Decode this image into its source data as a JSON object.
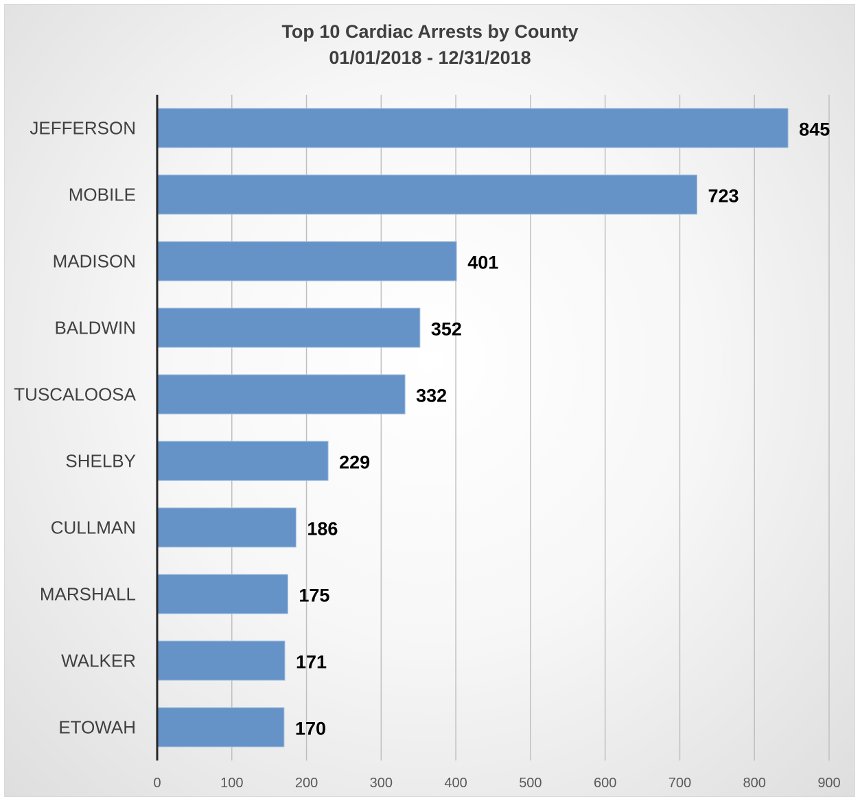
{
  "chart_data": {
    "type": "bar",
    "orientation": "horizontal",
    "title": "Top  10 Cardiac Arrests by County",
    "subtitle": "01/01/2018 - 12/31/2018",
    "categories": [
      "JEFFERSON",
      "MOBILE",
      "MADISON",
      "BALDWIN",
      "TUSCALOOSA",
      "SHELBY",
      "CULLMAN",
      "MARSHALL",
      "WALKER",
      "ETOWAH"
    ],
    "values": [
      845,
      723,
      401,
      352,
      332,
      229,
      186,
      175,
      171,
      170
    ],
    "xlim": [
      0,
      900
    ],
    "xticks": [
      "0",
      "100",
      "200",
      "300",
      "400",
      "500",
      "600",
      "700",
      "800",
      "900"
    ],
    "xlabel": "",
    "ylabel": "",
    "grid": true,
    "legend": "none",
    "bar_color": "#6593c8",
    "data_labels": true
  }
}
